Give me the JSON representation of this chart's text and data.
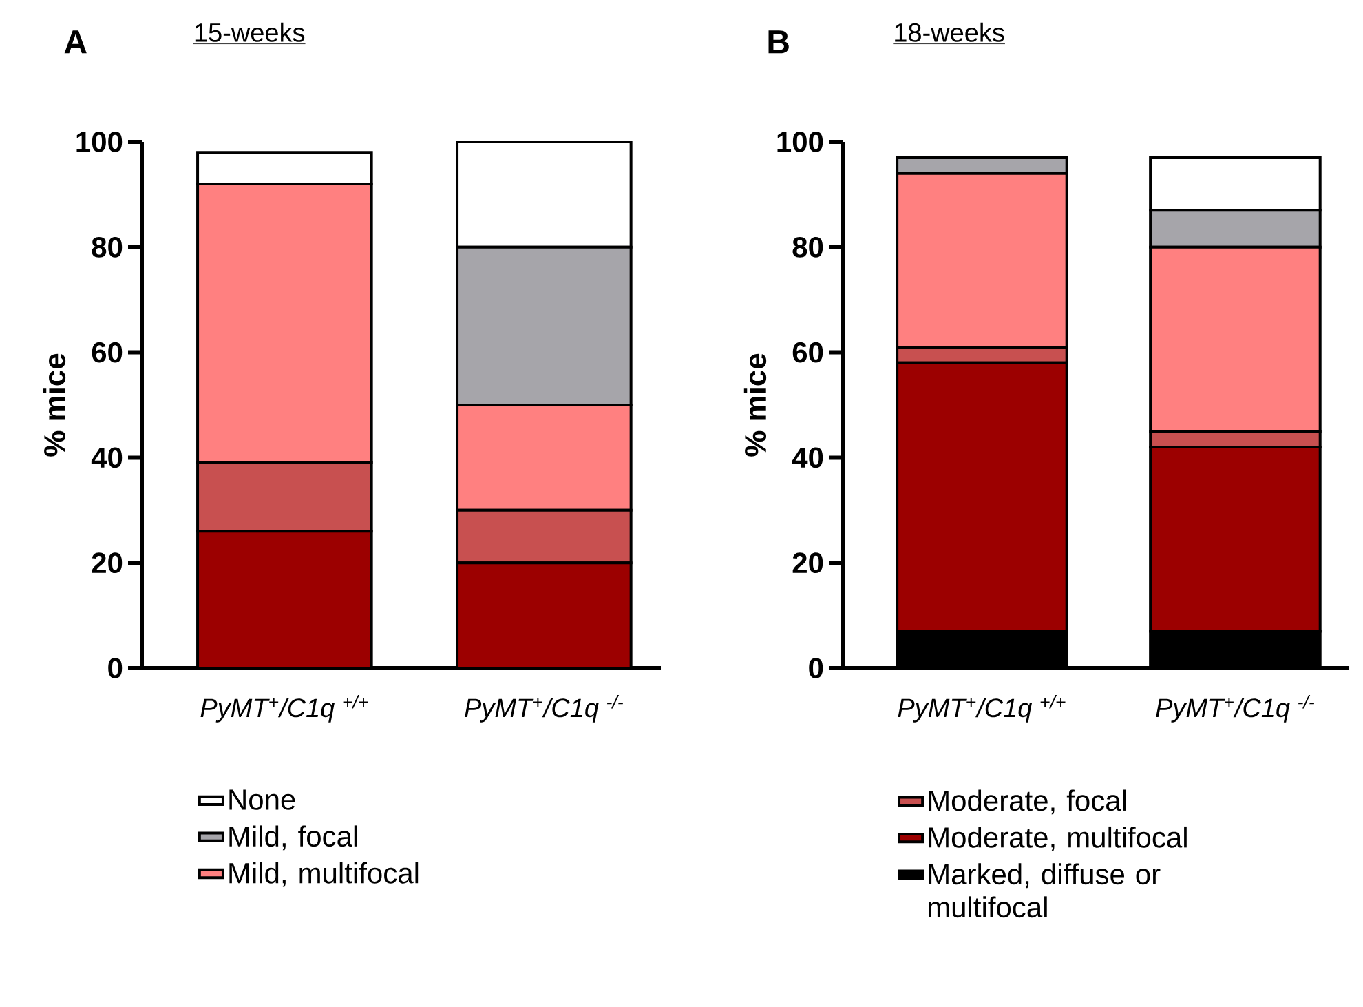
{
  "chart_data": [
    {
      "type": "bar",
      "title": "15-weeks",
      "ylabel": "% mice",
      "annotations": [
        "A"
      ],
      "stacked": true,
      "legend": "bottom",
      "categories": [
        "*PyMT*$^{+}$*/C1q* $^{+/+}$",
        "*PyMT*$^{+}$*/C1q* $^{-/-}$"
      ],
      "ylim": [
        0,
        100
      ],
      "yticks": [
        0,
        20,
        40,
        60,
        80,
        100
      ],
      "series": [
        {
          "color": "#9c0000",
          "values": [
            26,
            20
          ]
        },
        {
          "color": "#c85050",
          "values": [
            13,
            10
          ]
        },
        {
          "name": "Mild, multifocal",
          "color": "#ff8080",
          "values": [
            53,
            20
          ]
        },
        {
          "name": "Mild, focal",
          "color": "#a6a5aa",
          "values": [
            0,
            30
          ]
        },
        {
          "name": "None",
          "color": "#ffffff",
          "values": [
            6,
            20
          ]
        }
      ]
    },
    {
      "type": "bar",
      "title": "18-weeks",
      "ylabel": "% mice",
      "annotations": [
        "B"
      ],
      "stacked": true,
      "legend": "bottom",
      "categories": [
        "*PyMT*$^{+}$*/C1q* $^{+/+}$",
        "*PyMT*$^{+}$*/C1q* $^{-/-}$"
      ],
      "ylim": [
        0,
        100
      ],
      "yticks": [
        0,
        20,
        40,
        60,
        80,
        100
      ],
      "series": [
        {
          "name": "Marked, diffuse or multifocal",
          "color": "#000000",
          "values": [
            7,
            7
          ]
        },
        {
          "name": "Moderate, multifocal",
          "color": "#9c0000",
          "values": [
            51,
            35
          ]
        },
        {
          "name": "Moderate, focal",
          "color": "#c85050",
          "values": [
            3,
            3
          ]
        },
        {
          "color": "#ff8080",
          "values": [
            33,
            35
          ]
        },
        {
          "color": "#a6a5aa",
          "values": [
            3,
            7
          ]
        },
        {
          "color": "#ffffff",
          "values": [
            0,
            10
          ]
        }
      ]
    }
  ]
}
